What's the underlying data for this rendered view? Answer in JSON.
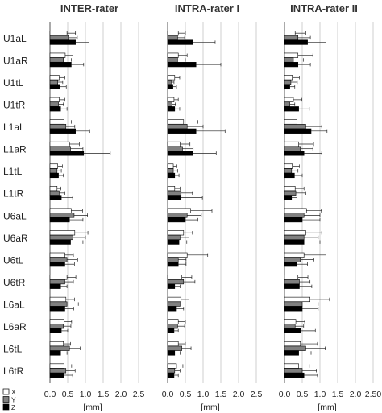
{
  "chart_data": {
    "type": "bar",
    "orientation": "horizontal",
    "categories": [
      "U1aL",
      "U1aR",
      "U1tL",
      "U1tR",
      "L1aL",
      "L1aR",
      "L1tL",
      "L1tR",
      "U6aL",
      "U6aR",
      "U6tL",
      "U6tR",
      "L6aL",
      "L6aR",
      "L6tL",
      "L6tR"
    ],
    "legend": [
      "X",
      "Y",
      "Z"
    ],
    "legend_position": "bottom-left",
    "series_colors": [
      "#ffffff",
      "#808080",
      "#000000"
    ],
    "xlabel": "[mm]",
    "xlim": [
      0,
      2.5
    ],
    "x_ticks": [
      "0.0",
      "0.5",
      "1.0",
      "1.5",
      "2.0",
      "2.5"
    ],
    "x_ticks_panel3": [
      "0.0",
      "0.5",
      "1.0",
      "1.5",
      "2.0",
      "2.50"
    ],
    "grid": "vertical",
    "error_bars": true,
    "panels": [
      {
        "title": "INTER-rater",
        "series": [
          {
            "name": "X",
            "values": [
              0.48,
              0.43,
              0.26,
              0.26,
              0.4,
              0.55,
              0.22,
              0.2,
              0.6,
              0.7,
              0.42,
              0.48,
              0.45,
              0.4,
              0.38,
              0.4
            ],
            "errors": [
              0.24,
              0.22,
              0.16,
              0.16,
              0.2,
              0.28,
              0.13,
              0.11,
              0.32,
              0.37,
              0.24,
              0.25,
              0.24,
              0.21,
              0.2,
              0.21
            ]
          },
          {
            "name": "Y",
            "values": [
              0.52,
              0.38,
              0.22,
              0.24,
              0.45,
              0.58,
              0.2,
              0.26,
              0.68,
              0.65,
              0.48,
              0.42,
              0.48,
              0.38,
              0.55,
              0.45
            ],
            "errors": [
              0.25,
              0.22,
              0.14,
              0.14,
              0.25,
              0.35,
              0.12,
              0.16,
              0.38,
              0.35,
              0.3,
              0.24,
              0.32,
              0.21,
              0.3,
              0.26
            ]
          },
          {
            "name": "Z",
            "values": [
              0.72,
              0.6,
              0.28,
              0.3,
              0.72,
              0.95,
              0.24,
              0.32,
              0.55,
              0.58,
              0.42,
              0.3,
              0.42,
              0.32,
              0.3,
              0.4
            ],
            "errors": [
              0.38,
              0.35,
              0.18,
              0.18,
              0.4,
              0.75,
              0.14,
              0.32,
              0.38,
              0.35,
              0.27,
              0.18,
              0.25,
              0.18,
              0.18,
              0.24
            ]
          }
        ]
      },
      {
        "title": "INTRA-rater I",
        "series": [
          {
            "name": "X",
            "values": [
              0.3,
              0.3,
              0.2,
              0.18,
              0.45,
              0.35,
              0.16,
              0.2,
              0.65,
              0.45,
              0.55,
              0.4,
              0.38,
              0.3,
              0.3,
              0.25
            ],
            "errors": [
              0.2,
              0.25,
              0.14,
              0.12,
              0.4,
              0.28,
              0.1,
              0.15,
              0.6,
              0.25,
              0.58,
              0.28,
              0.22,
              0.2,
              0.2,
              0.18
            ]
          },
          {
            "name": "Y",
            "values": [
              0.28,
              0.28,
              0.1,
              0.12,
              0.55,
              0.42,
              0.16,
              0.38,
              0.55,
              0.35,
              0.3,
              0.45,
              0.35,
              0.28,
              0.4,
              0.2
            ],
            "errors": [
              0.2,
              0.22,
              0.08,
              0.1,
              0.45,
              0.3,
              0.12,
              0.32,
              0.4,
              0.25,
              0.22,
              0.32,
              0.25,
              0.2,
              0.26,
              0.15
            ]
          },
          {
            "name": "Z",
            "values": [
              0.72,
              0.8,
              0.15,
              0.2,
              0.8,
              0.72,
              0.2,
              0.38,
              0.5,
              0.32,
              0.3,
              0.2,
              0.25,
              0.18,
              0.2,
              0.18
            ],
            "errors": [
              0.62,
              0.7,
              0.1,
              0.14,
              0.82,
              0.65,
              0.12,
              0.6,
              0.35,
              0.22,
              0.22,
              0.15,
              0.2,
              0.12,
              0.15,
              0.12
            ]
          }
        ]
      },
      {
        "title": "INTRA-rater II",
        "series": [
          {
            "name": "X",
            "values": [
              0.3,
              0.38,
              0.22,
              0.25,
              0.35,
              0.4,
              0.22,
              0.3,
              0.62,
              0.6,
              0.55,
              0.38,
              0.72,
              0.32,
              0.45,
              0.4
            ],
            "errors": [
              0.3,
              0.42,
              0.2,
              0.24,
              0.34,
              0.42,
              0.2,
              0.25,
              0.42,
              0.45,
              0.62,
              0.28,
              0.55,
              0.25,
              0.48,
              0.3
            ]
          },
          {
            "name": "Y",
            "values": [
              0.38,
              0.25,
              0.18,
              0.15,
              0.6,
              0.45,
              0.2,
              0.32,
              0.55,
              0.55,
              0.45,
              0.42,
              0.5,
              0.3,
              0.6,
              0.5
            ],
            "errors": [
              0.35,
              0.28,
              0.18,
              0.14,
              0.45,
              0.35,
              0.18,
              0.28,
              0.45,
              0.4,
              0.38,
              0.3,
              0.45,
              0.24,
              0.55,
              0.4
            ]
          },
          {
            "name": "Z",
            "values": [
              0.65,
              0.38,
              0.15,
              0.4,
              0.75,
              0.55,
              0.28,
              0.2,
              0.5,
              0.55,
              0.35,
              0.42,
              0.5,
              0.45,
              0.4,
              0.55
            ],
            "errors": [
              0.52,
              0.35,
              0.14,
              0.3,
              0.45,
              0.5,
              0.22,
              0.15,
              0.5,
              0.45,
              0.3,
              0.35,
              0.45,
              0.42,
              0.35,
              0.38
            ]
          }
        ]
      }
    ]
  }
}
